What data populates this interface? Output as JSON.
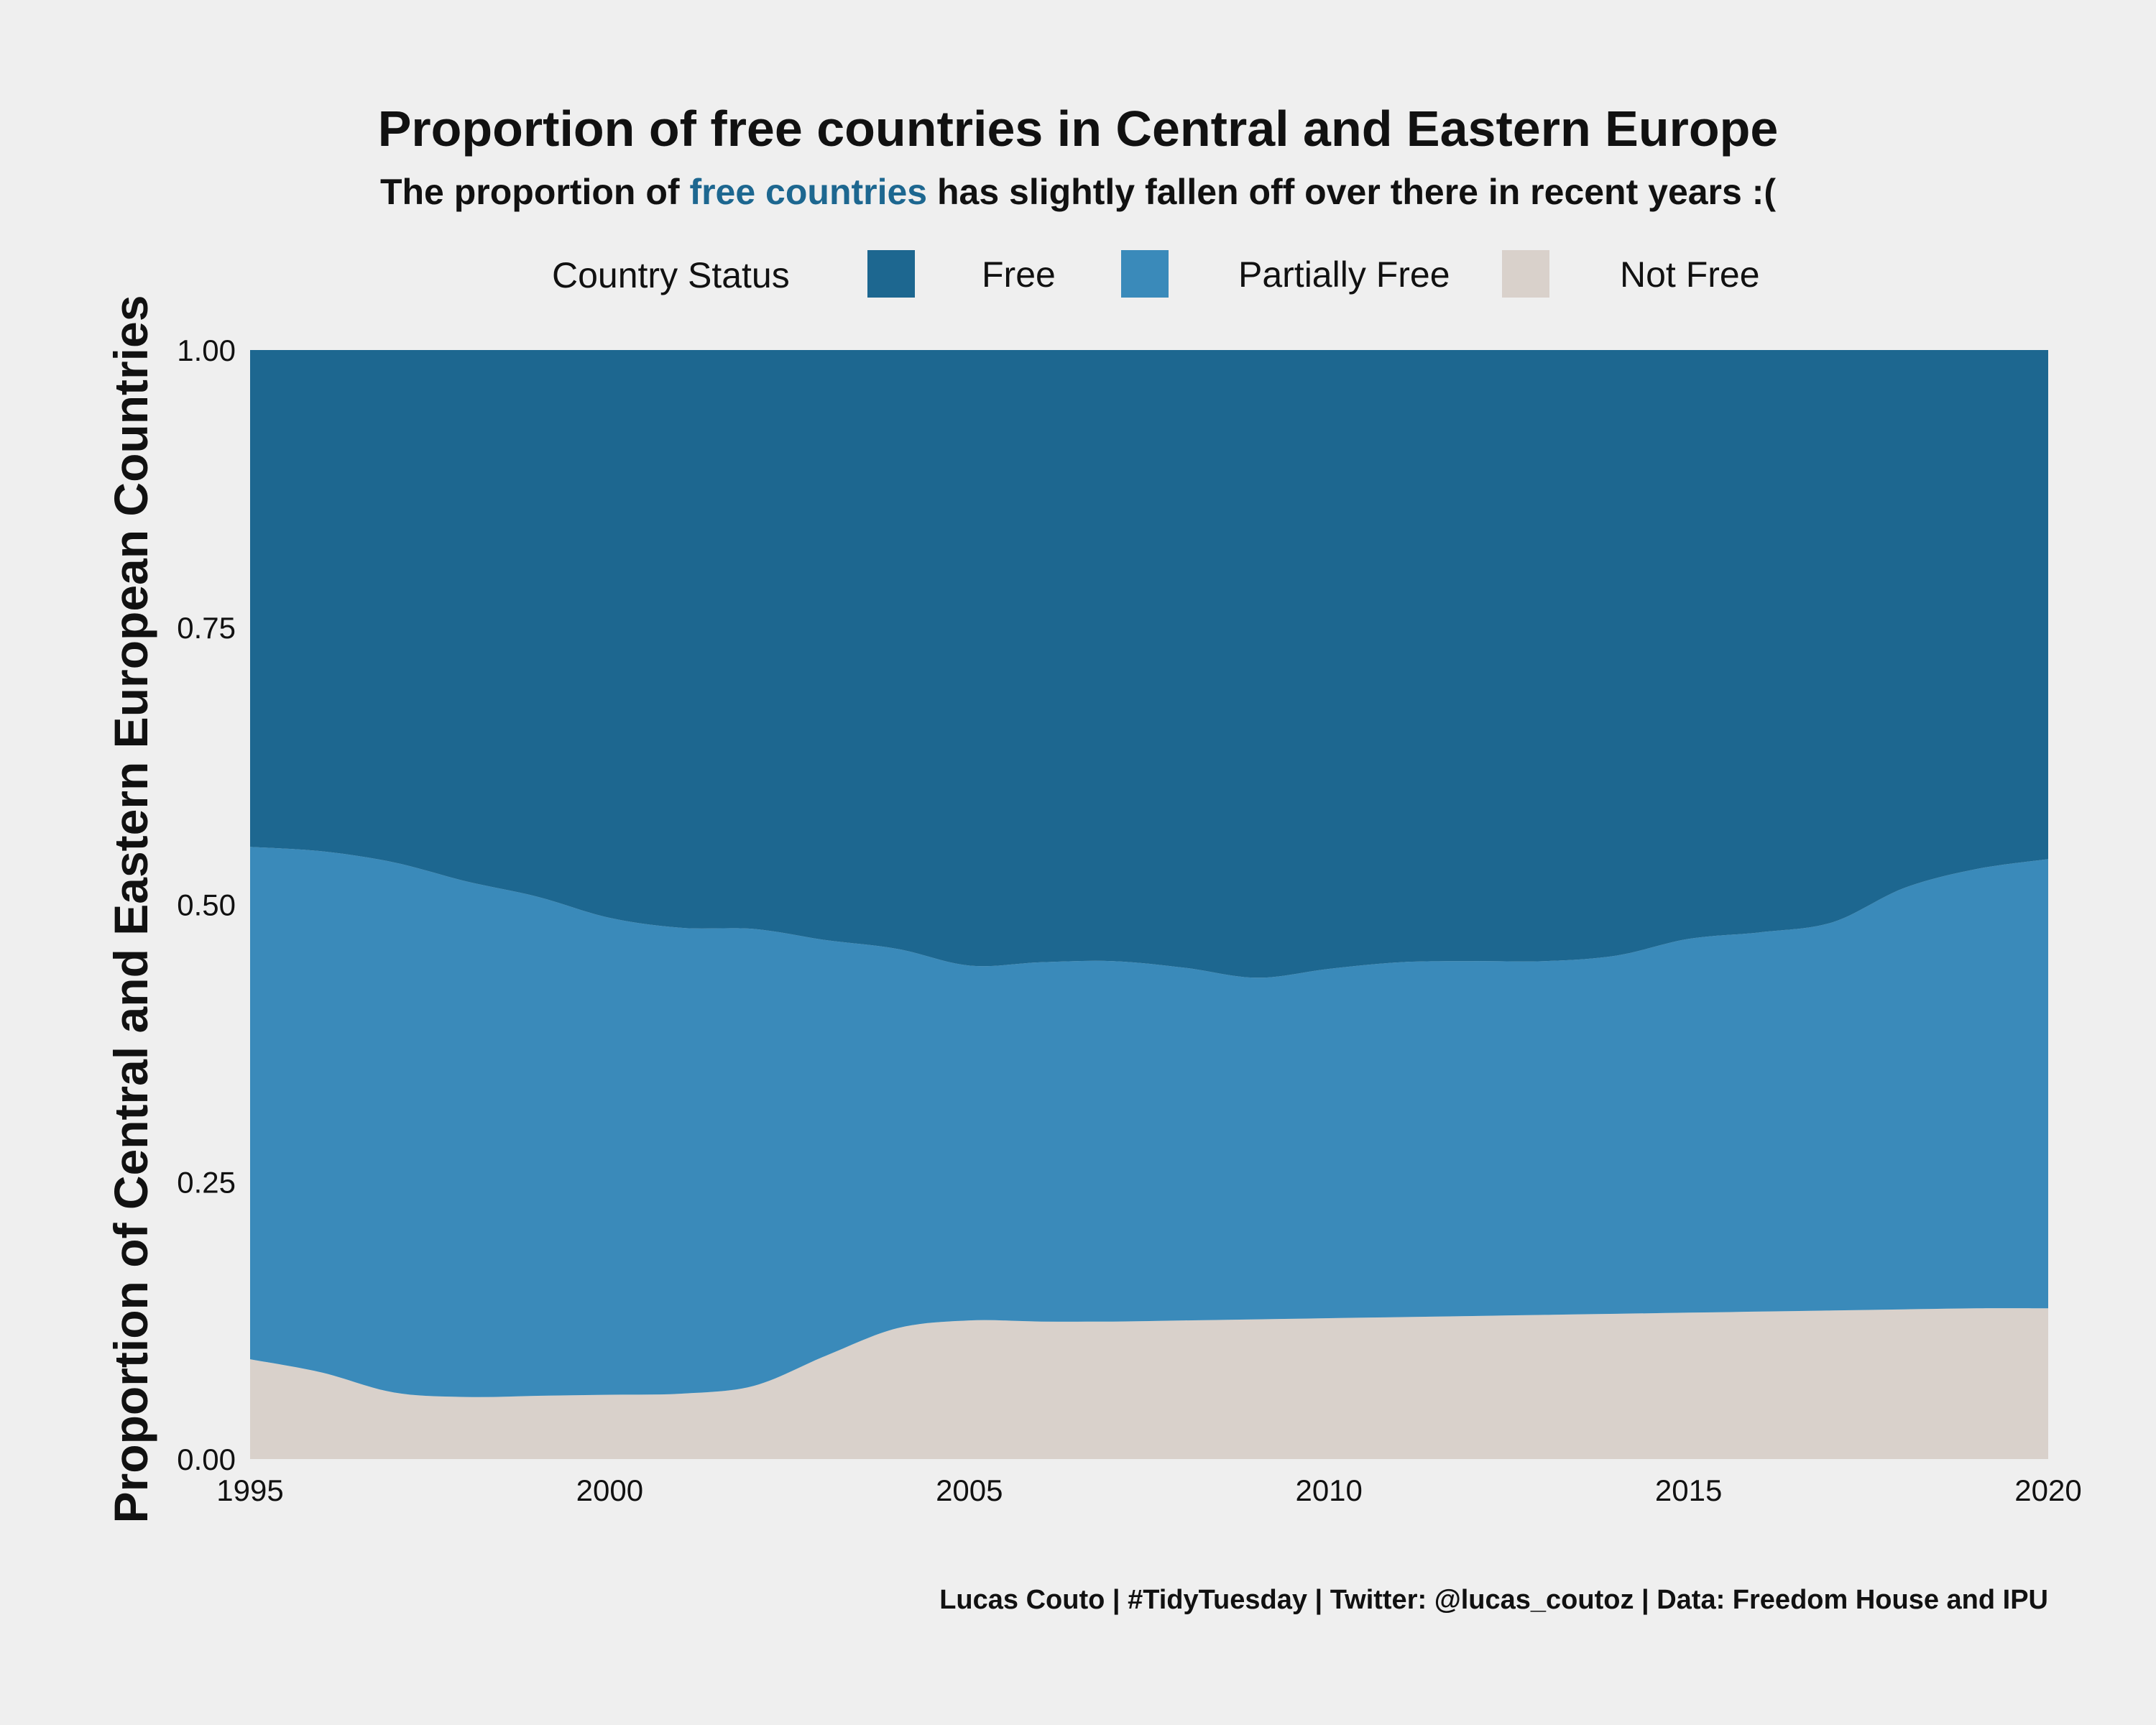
{
  "chart_data": {
    "type": "area",
    "stacked": true,
    "title": "Proportion of free countries in Central and Eastern Europe",
    "subtitle": {
      "before": "The proportion of ",
      "highlight": "free countries",
      "after": " has slightly fallen off over there in recent years :(",
      "highlight_color": "#1d6790"
    },
    "ylabel": "Proportion of Central and Eastern European Countries",
    "xlabel": "",
    "xlim": [
      1995,
      2020
    ],
    "ylim": [
      0,
      1
    ],
    "x_ticks": [
      "1995",
      "2000",
      "2005",
      "2010",
      "2015",
      "2020"
    ],
    "y_ticks": [
      "0.00",
      "0.25",
      "0.50",
      "0.75",
      "1.00"
    ],
    "grid": false,
    "legend": {
      "title": "Country Status",
      "placement": "top",
      "entries": [
        {
          "label": "Free",
          "color": "#1d6790"
        },
        {
          "label": "Partially Free",
          "color": "#3a8aba"
        },
        {
          "label": "Not Free",
          "color": "#d9d1cb"
        }
      ]
    },
    "x": [
      1995,
      1996,
      1997,
      1998,
      1999,
      2000,
      2001,
      2002,
      2003,
      2004,
      2005,
      2006,
      2007,
      2008,
      2009,
      2010,
      2011,
      2012,
      2013,
      2014,
      2015,
      2016,
      2017,
      2018,
      2019,
      2020
    ],
    "series": [
      {
        "name": "Not Free",
        "color": "#d9d1cb",
        "values": [
          0.09,
          0.078,
          0.06,
          0.056,
          0.057,
          0.058,
          0.059,
          0.066,
          0.093,
          0.118,
          0.125,
          0.124,
          0.124,
          0.125,
          0.126,
          0.127,
          0.128,
          0.129,
          0.13,
          0.131,
          0.132,
          0.133,
          0.134,
          0.135,
          0.136,
          0.136
        ]
      },
      {
        "name": "Partially Free",
        "color": "#3a8aba",
        "values": [
          0.462,
          0.47,
          0.478,
          0.465,
          0.45,
          0.43,
          0.42,
          0.412,
          0.375,
          0.342,
          0.32,
          0.324,
          0.325,
          0.318,
          0.308,
          0.315,
          0.32,
          0.32,
          0.319,
          0.323,
          0.337,
          0.342,
          0.35,
          0.38,
          0.396,
          0.405
        ]
      },
      {
        "name": "Free",
        "color": "#1d6790",
        "values": [
          0.448,
          0.452,
          0.462,
          0.479,
          0.493,
          0.512,
          0.521,
          0.522,
          0.532,
          0.54,
          0.555,
          0.552,
          0.551,
          0.557,
          0.566,
          0.558,
          0.552,
          0.551,
          0.551,
          0.546,
          0.531,
          0.525,
          0.516,
          0.485,
          0.468,
          0.459
        ]
      }
    ]
  },
  "caption": "Lucas Couto | #TidyTuesday | Twitter: @lucas_coutoz | Data: Freedom House and IPU"
}
